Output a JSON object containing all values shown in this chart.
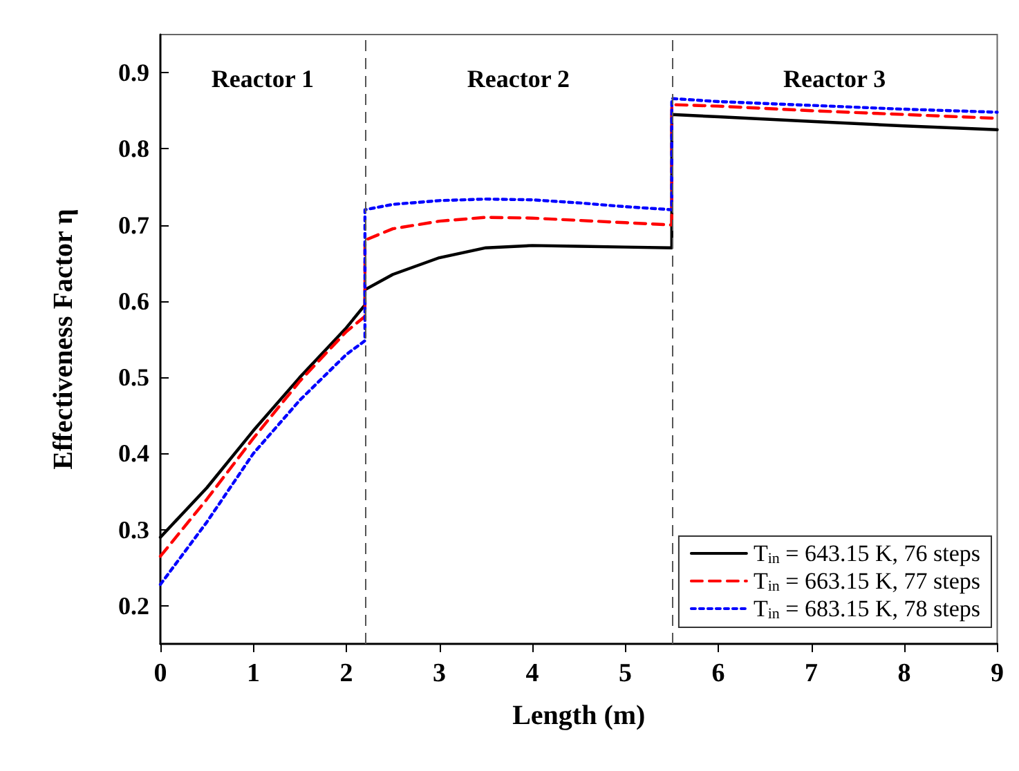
{
  "chart_data": {
    "type": "line",
    "xlabel": "Length (m)",
    "ylabel": "Effectiveness Factor η",
    "xlim": [
      0,
      9
    ],
    "xticks": [
      0,
      1,
      2,
      3,
      4,
      5,
      6,
      7,
      8,
      9
    ],
    "ylim": [
      0.15,
      0.95
    ],
    "yticks": [
      0.2,
      0.3,
      0.4,
      0.5,
      0.6,
      0.7,
      0.8,
      0.9
    ],
    "grid": false,
    "legend": "bottom right",
    "marker": "none",
    "ref_lines": [
      {
        "axis": "x",
        "value": 2.2,
        "color": "#555555",
        "line_style": "dashed"
      },
      {
        "axis": "x",
        "value": 5.5,
        "color": "#555555",
        "line_style": "dashed"
      }
    ],
    "annotations": [
      "Reactor 1",
      "Reactor 2",
      "Reactor 3"
    ],
    "series": [
      {
        "name": "T$_{in}$ = 643.15 K, 76 steps",
        "color": "#000000",
        "line_style": "solid",
        "x": [
          0,
          0.5,
          1,
          1.5,
          2,
          2.2,
          2.2,
          2.5,
          3,
          3.5,
          4,
          4.5,
          5,
          5.5,
          5.5,
          6,
          7,
          8,
          9
        ],
        "values": [
          0.29,
          0.355,
          0.43,
          0.5,
          0.565,
          0.595,
          0.615,
          0.635,
          0.657,
          0.67,
          0.673,
          0.672,
          0.671,
          0.67,
          0.845,
          0.842,
          0.836,
          0.83,
          0.825
        ]
      },
      {
        "name": "T$_{in}$ = 663.15 K, 77 steps",
        "color": "#ff0000",
        "line_style": "dashed",
        "x": [
          0,
          0.5,
          1,
          1.5,
          2,
          2.2,
          2.2,
          2.5,
          3,
          3.5,
          4,
          4.5,
          5,
          5.5,
          5.5,
          6,
          7,
          8,
          9
        ],
        "values": [
          0.265,
          0.34,
          0.42,
          0.495,
          0.56,
          0.58,
          0.68,
          0.695,
          0.705,
          0.71,
          0.709,
          0.706,
          0.703,
          0.7,
          0.858,
          0.856,
          0.85,
          0.845,
          0.84
        ]
      },
      {
        "name": "T$_{in}$ = 683.15 K, 78 steps",
        "color": "#0000ff",
        "line_style": "dotted",
        "x": [
          0,
          0.5,
          1,
          1.5,
          2,
          2.2,
          2.2,
          2.5,
          3,
          3.5,
          4,
          4.5,
          5,
          5.5,
          5.5,
          6,
          7,
          8,
          9
        ],
        "values": [
          0.228,
          0.31,
          0.4,
          0.47,
          0.53,
          0.548,
          0.72,
          0.727,
          0.732,
          0.734,
          0.733,
          0.729,
          0.724,
          0.72,
          0.866,
          0.862,
          0.857,
          0.852,
          0.848
        ]
      }
    ]
  }
}
